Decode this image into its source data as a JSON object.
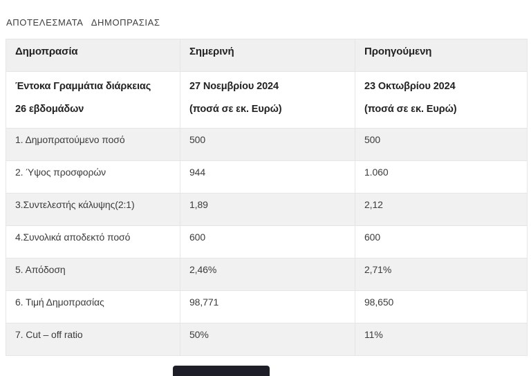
{
  "page": {
    "title": "ΑΠΟΤΕΛΕΣΜΑΤΑ   ΔΗΜΟΠΡΑΣΙΑΣ"
  },
  "table": {
    "headers": {
      "auction": "Δημοπρασία",
      "current": "Σημερινή",
      "previous": "Προηγούμενη"
    },
    "subheader": {
      "label_line1": "Έντοκα Γραμμάτια διάρκειας",
      "label_line2": "26 εβδομάδων",
      "current_line1": "27 Νοεμβρίου 2024",
      "current_line2": "(ποσά σε εκ. Ευρώ)",
      "previous_line1": "23 Οκτωβρίου 2024",
      "previous_line2": "(ποσά σε εκ. Ευρώ)"
    },
    "rows": [
      {
        "label": "1. Δημοπρατούμενο ποσό",
        "current": "500",
        "previous": "500"
      },
      {
        "label": "2. Ύψος προσφορών",
        "current": "944",
        "previous": "1.060"
      },
      {
        "label": "3.Συντελεστής κάλυψης(2:1)",
        "current": "1,89",
        "previous": "2,12"
      },
      {
        "label": "4.Συνολικά αποδεκτό ποσό",
        "current": "600",
        "previous": "600"
      },
      {
        "label": "5. Απόδοση",
        "current": "2,46%",
        "previous": "2,71%"
      },
      {
        "label": "6. Τιμή Δημοπρασίας",
        "current": "98,771",
        "previous": "98,650"
      },
      {
        "label": "7. Cut – off ratio",
        "current": "50%",
        "previous": "11%"
      }
    ]
  },
  "colors": {
    "row_shaded": "#f1f1f1",
    "border": "#e5e5e5",
    "header_text": "#222222",
    "body_text": "#3b3b3b",
    "bottom_bar": "#1e1e29"
  }
}
